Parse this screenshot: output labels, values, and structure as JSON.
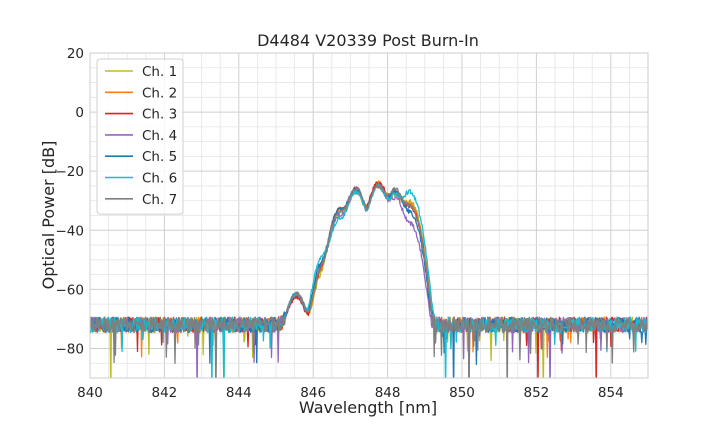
{
  "chart_data": {
    "type": "line",
    "title": "D4484 V20339 Post Burn-In",
    "xlabel": "Wavelength [nm]",
    "ylabel": "Optical Power [dB]",
    "xlim": [
      840,
      855
    ],
    "ylim": [
      -90,
      20
    ],
    "xticks": [
      840,
      842,
      844,
      846,
      848,
      850,
      852,
      854
    ],
    "yticks": [
      20,
      0,
      -20,
      -40,
      -60,
      -80
    ],
    "xtick_labels": [
      "840",
      "842",
      "844",
      "846",
      "848",
      "850",
      "852",
      "854"
    ],
    "ytick_labels": [
      "20",
      "0",
      "−20",
      "−40",
      "−60",
      "−80"
    ],
    "grid": true,
    "legend_position": "top-left",
    "noise_floor_db": -72,
    "series": [
      {
        "name": "Ch. 1",
        "color": "#bcbd22",
        "peaks": [
          {
            "x": 845.55,
            "y": -62
          },
          {
            "x": 846.3,
            "y": -54
          },
          {
            "x": 846.72,
            "y": -34
          },
          {
            "x": 847.15,
            "y": -27
          },
          {
            "x": 847.75,
            "y": -25
          },
          {
            "x": 848.2,
            "y": -28
          },
          {
            "x": 848.6,
            "y": -30
          }
        ]
      },
      {
        "name": "Ch. 2",
        "color": "#ff7f0e",
        "peaks": [
          {
            "x": 845.55,
            "y": -62
          },
          {
            "x": 846.3,
            "y": -53
          },
          {
            "x": 846.72,
            "y": -33
          },
          {
            "x": 847.15,
            "y": -26
          },
          {
            "x": 847.75,
            "y": -24
          },
          {
            "x": 848.2,
            "y": -27
          },
          {
            "x": 848.6,
            "y": -31
          }
        ]
      },
      {
        "name": "Ch. 3",
        "color": "#d62728",
        "peaks": [
          {
            "x": 845.55,
            "y": -63
          },
          {
            "x": 846.3,
            "y": -52
          },
          {
            "x": 846.72,
            "y": -33
          },
          {
            "x": 847.15,
            "y": -26
          },
          {
            "x": 847.75,
            "y": -24
          },
          {
            "x": 848.2,
            "y": -27
          },
          {
            "x": 848.6,
            "y": -32
          }
        ]
      },
      {
        "name": "Ch. 4",
        "color": "#9467bd",
        "peaks": [
          {
            "x": 845.55,
            "y": -62
          },
          {
            "x": 846.3,
            "y": -51
          },
          {
            "x": 846.72,
            "y": -35
          },
          {
            "x": 847.15,
            "y": -27
          },
          {
            "x": 847.75,
            "y": -25
          },
          {
            "x": 848.2,
            "y": -29
          },
          {
            "x": 848.6,
            "y": -38
          }
        ]
      },
      {
        "name": "Ch. 5",
        "color": "#1f77b4",
        "peaks": [
          {
            "x": 845.55,
            "y": -62
          },
          {
            "x": 846.3,
            "y": -50
          },
          {
            "x": 846.72,
            "y": -33
          },
          {
            "x": 847.15,
            "y": -26
          },
          {
            "x": 847.75,
            "y": -25
          },
          {
            "x": 848.2,
            "y": -27
          },
          {
            "x": 848.6,
            "y": -34
          }
        ]
      },
      {
        "name": "Ch. 6",
        "color": "#17becf",
        "peaks": [
          {
            "x": 845.55,
            "y": -62
          },
          {
            "x": 846.3,
            "y": -48
          },
          {
            "x": 846.72,
            "y": -36
          },
          {
            "x": 847.15,
            "y": -27
          },
          {
            "x": 847.75,
            "y": -25
          },
          {
            "x": 848.2,
            "y": -28
          },
          {
            "x": 848.6,
            "y": -27
          }
        ]
      },
      {
        "name": "Ch. 7",
        "color": "#7f7f7f",
        "peaks": [
          {
            "x": 845.55,
            "y": -62
          },
          {
            "x": 846.3,
            "y": -52
          },
          {
            "x": 846.72,
            "y": -34
          },
          {
            "x": 847.15,
            "y": -26
          },
          {
            "x": 847.75,
            "y": -25
          },
          {
            "x": 848.2,
            "y": -26
          },
          {
            "x": 848.6,
            "y": -32
          }
        ]
      }
    ]
  }
}
